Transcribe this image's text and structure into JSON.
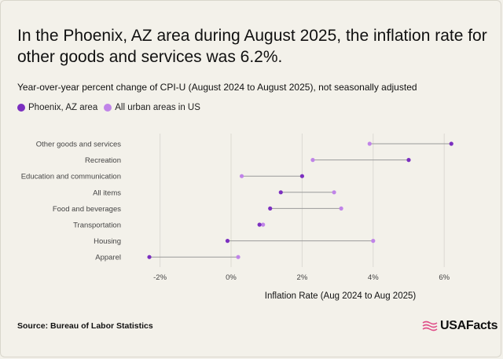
{
  "header": {
    "title": "In the Phoenix, AZ area during August 2025, the inflation rate for other goods and services was 6.2%.",
    "subtitle": "Year-over-year percent change of CPI-U (August 2024 to August 2025), not seasonally adjusted"
  },
  "footer": {
    "source": "Source: Bureau of Labor Statistics",
    "logo_text": "USAFacts"
  },
  "colors": {
    "phoenix": "#7b2fc0",
    "us": "#c084e8",
    "connector": "#9a9a9a",
    "grid": "#dcdad3"
  },
  "chart_data": {
    "type": "dumbbell",
    "categories": [
      "Other goods and services",
      "Recreation",
      "Education and communication",
      "All items",
      "Food and beverages",
      "Transportation",
      "Housing",
      "Apparel"
    ],
    "series": [
      {
        "name": "Phoenix, AZ area",
        "values": [
          6.2,
          5.0,
          2.0,
          1.4,
          1.1,
          0.8,
          -0.1,
          -2.3
        ]
      },
      {
        "name": "All urban areas in US",
        "values": [
          3.9,
          2.3,
          0.3,
          2.9,
          3.1,
          0.9,
          4.0,
          0.2
        ]
      }
    ],
    "xlim": [
      -2.5,
      6.5
    ],
    "xticks": [
      -2,
      0,
      2,
      4,
      6
    ],
    "xtick_labels": [
      "-2%",
      "0%",
      "2%",
      "4%",
      "6%"
    ],
    "xlabel": "Inflation Rate (Aug 2024 to Aug 2025)",
    "grid": true,
    "legend_placement": "top-left"
  }
}
